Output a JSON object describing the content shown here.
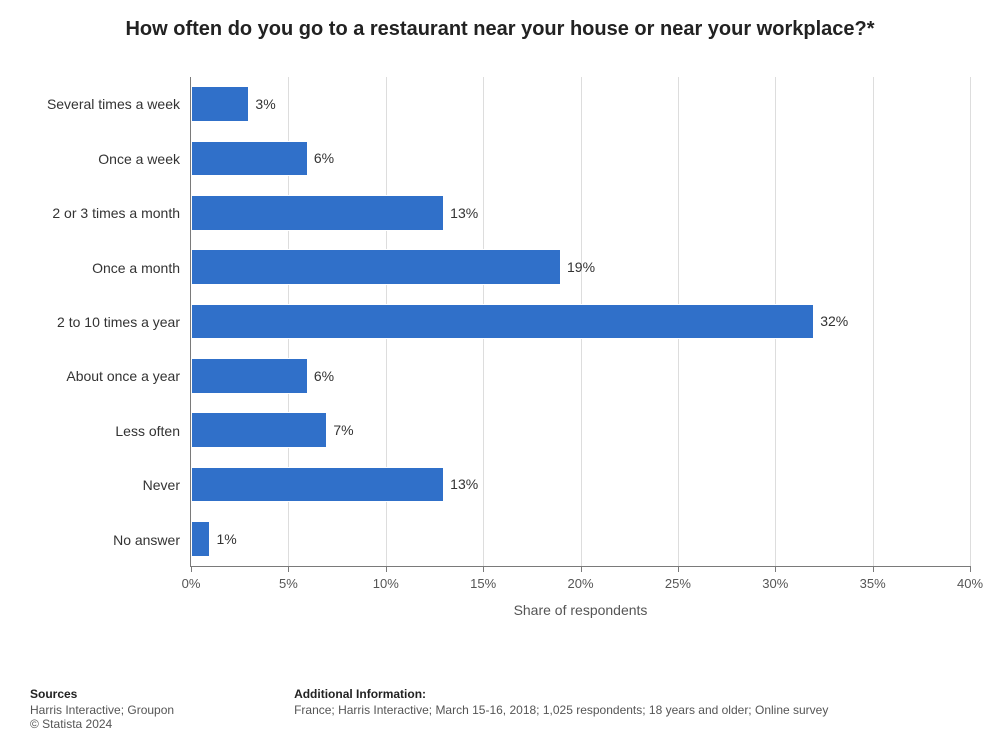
{
  "title": {
    "text": "How often do you go to a restaurant near your house or near your workplace?*",
    "fontsize": 20
  },
  "chart": {
    "type": "bar-horizontal",
    "bar_color": "#3070c9",
    "grid_color": "#dddddd",
    "axis_color": "#7a7a7a",
    "background_color": "#ffffff",
    "value_label_fontsize": 14,
    "ytick_fontsize": 14,
    "xtick_fontsize": 13,
    "xlabel": "Share of respondents",
    "xlabel_fontsize": 14,
    "xlim_max": 40,
    "xtick_step": 5,
    "xtick_suffix": "%",
    "categories": [
      "Several times a week",
      "Once a week",
      "2 or 3 times a month",
      "Once a month",
      "2 to 10 times a year",
      "About once a year",
      "Less often",
      "Never",
      "No answer"
    ],
    "values": [
      3,
      6,
      13,
      19,
      32,
      6,
      7,
      13,
      1
    ],
    "value_suffix": "%"
  },
  "footer": {
    "fontsize": 12,
    "left": {
      "heading": "Sources",
      "line1": "Harris Interactive; Groupon",
      "line2": "© Statista 2024"
    },
    "right": {
      "heading": "Additional Information:",
      "line1": "France; Harris Interactive; March 15-16, 2018; 1,025 respondents; 18 years and older; Online survey"
    }
  }
}
